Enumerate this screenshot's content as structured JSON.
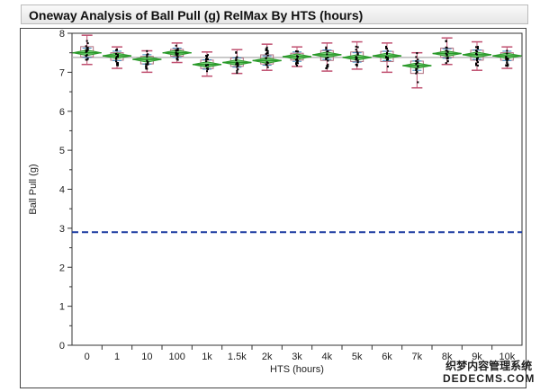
{
  "title": "Oneway Analysis of Ball Pull (g) RelMax By HTS (hours)",
  "chart_data": {
    "type": "oneway",
    "title": "Oneway Analysis of Ball Pull (g) RelMax By HTS (hours)",
    "xlabel": "HTS (hours)",
    "ylabel": "Ball Pull (g)",
    "ylim": [
      0,
      8
    ],
    "yticks": [
      "0",
      "1",
      "2",
      "3",
      "4",
      "5",
      "6",
      "7",
      "8"
    ],
    "categories": [
      "0",
      "1",
      "10",
      "100",
      "1k",
      "1.5k",
      "2k",
      "3k",
      "4k",
      "5k",
      "6k",
      "7k",
      "8k",
      "9k",
      "10k"
    ],
    "means": [
      7.5,
      7.42,
      7.33,
      7.5,
      7.2,
      7.25,
      7.3,
      7.4,
      7.45,
      7.38,
      7.42,
      7.17,
      7.48,
      7.45,
      7.42
    ],
    "mins": [
      7.2,
      7.1,
      7.0,
      7.25,
      6.9,
      6.97,
      7.05,
      7.15,
      7.03,
      7.08,
      7.0,
      6.6,
      7.2,
      7.05,
      7.1
    ],
    "maxs": [
      7.95,
      7.65,
      7.55,
      7.75,
      7.52,
      7.58,
      7.72,
      7.65,
      7.75,
      7.78,
      7.75,
      7.5,
      7.88,
      7.78,
      7.65
    ],
    "grand_mean": 7.38,
    "reference_line": 2.9,
    "colors": {
      "diamond": "#2a9a2a",
      "box": "#b07080",
      "whisker": "#c05070",
      "ref": "#1a3aa0",
      "mean_line": "#aaaaaa"
    }
  },
  "watermark": {
    "line1": "织梦内容管理系统",
    "line2": "DEDECMS.COM"
  }
}
